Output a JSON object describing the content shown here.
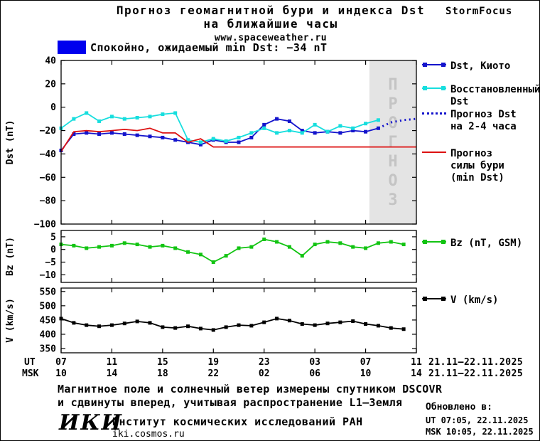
{
  "header": {
    "title_line1": "Прогноз геомагнитной бури и индекса Dst",
    "title_line2": "на ближайшие часы",
    "site": "www.spaceweather.ru",
    "brand": "StormFocus"
  },
  "banner": {
    "text": "Спокойно, ожидаемый min Dst: −34 nT",
    "swatch_color": "#0000ee"
  },
  "legend": {
    "entries": [
      {
        "label": "Dst, Киото",
        "color": "#1414cc",
        "style": "solid",
        "marker": "square"
      },
      {
        "label": "Восстановленный\nDst",
        "color": "#17dede",
        "style": "solid",
        "marker": "square"
      },
      {
        "label": "Прогноз Dst\nна 2-4 часа",
        "color": "#1414cc",
        "style": "dotted",
        "marker": "none"
      },
      {
        "label": "Прогноз\nсилы бури\n(min Dst)",
        "color": "#dd1111",
        "style": "solid",
        "marker": "none"
      },
      {
        "label": "Bz (nT, GSM)",
        "color": "#12c412",
        "style": "solid",
        "marker": "square"
      },
      {
        "label": "V (km/s)",
        "color": "#000000",
        "style": "solid",
        "marker": "square"
      }
    ]
  },
  "chart_data": [
    {
      "type": "line",
      "ylabel": "Dst (nT)",
      "ylim": [
        -100,
        40
      ],
      "yticks": [
        40,
        20,
        0,
        -20,
        -40,
        -60,
        -80,
        -100
      ],
      "xlim": [
        7,
        35
      ],
      "xticks": [
        7,
        11,
        15,
        19,
        23,
        27,
        31,
        35
      ],
      "grid": false,
      "legend_position": "right",
      "forecast_region": {
        "x_start": 31.3,
        "x_end": 35,
        "label": "ПРОГНОЗ",
        "fill": "#e4e4e4",
        "text_color": "#c4c4c4"
      },
      "series": [
        {
          "id": "dst-kyoto",
          "name": "Dst, Киото",
          "color": "#1414cc",
          "style": "solid",
          "marker": "square",
          "x": [
            7,
            8,
            9,
            10,
            11,
            12,
            13,
            14,
            15,
            16,
            17,
            18,
            19,
            20,
            21,
            22,
            23,
            24,
            25,
            26,
            27,
            28,
            29,
            30,
            31,
            32
          ],
          "y": [
            -37,
            -23,
            -22,
            -23,
            -22,
            -23,
            -24,
            -25,
            -26,
            -28,
            -30,
            -32,
            -28,
            -30,
            -30,
            -26,
            -15,
            -10,
            -12,
            -20,
            -22,
            -21,
            -22,
            -20,
            -21,
            -18
          ]
        },
        {
          "id": "restored-dst",
          "name": "Восстановленный Dst",
          "color": "#17dede",
          "style": "solid",
          "marker": "square",
          "x": [
            7,
            8,
            9,
            10,
            11,
            12,
            13,
            14,
            15,
            16,
            17,
            18,
            19,
            20,
            21,
            22,
            23,
            24,
            25,
            26,
            27,
            28,
            29,
            30,
            31,
            32
          ],
          "y": [
            -18,
            -10,
            -5,
            -12,
            -8,
            -10,
            -9,
            -8,
            -6,
            -5,
            -28,
            -30,
            -27,
            -29,
            -26,
            -22,
            -18,
            -22,
            -20,
            -22,
            -15,
            -21,
            -16,
            -18,
            -14,
            -11
          ]
        },
        {
          "id": "forecast-dst",
          "name": "Прогноз Dst на 2-4 часа",
          "color": "#1414cc",
          "style": "dotted",
          "marker": "none",
          "x": [
            32,
            33,
            34,
            35
          ],
          "y": [
            -18,
            -13,
            -11,
            -10
          ]
        },
        {
          "id": "storm-forecast",
          "name": "Прогноз силы бури (min Dst)",
          "color": "#dd1111",
          "style": "solid",
          "marker": "none",
          "x": [
            7,
            8,
            9,
            10,
            11,
            12,
            13,
            14,
            15,
            16,
            17,
            18,
            19,
            35
          ],
          "y": [
            -38,
            -21,
            -20,
            -21,
            -20,
            -19,
            -20,
            -18,
            -22,
            -22,
            -30,
            -27,
            -34,
            -34
          ]
        }
      ]
    },
    {
      "type": "line",
      "ylabel": "Bz (nT)",
      "ylim": [
        -13,
        7.5
      ],
      "yticks": [
        5,
        0,
        -5,
        -10
      ],
      "xlim": [
        7,
        35
      ],
      "xticks": [
        7,
        11,
        15,
        19,
        23,
        27,
        31,
        35
      ],
      "grid": false,
      "series": [
        {
          "id": "bz",
          "name": "Bz (nT, GSM)",
          "color": "#12c412",
          "style": "solid",
          "marker": "square",
          "x": [
            7,
            8,
            9,
            10,
            11,
            12,
            13,
            14,
            15,
            16,
            17,
            18,
            19,
            20,
            21,
            22,
            23,
            24,
            25,
            26,
            27,
            28,
            29,
            30,
            31,
            32,
            33,
            34
          ],
          "y": [
            2,
            1.5,
            0.5,
            1,
            1.5,
            2.5,
            2,
            1,
            1.5,
            0.5,
            -1,
            -2,
            -5,
            -2.5,
            0.5,
            1,
            4,
            3,
            1,
            -2.5,
            2,
            3,
            2.5,
            1,
            0.5,
            2.5,
            3,
            2
          ]
        }
      ]
    },
    {
      "type": "line",
      "ylabel": "V (km/s)",
      "ylim": [
        335,
        562
      ],
      "yticks": [
        550,
        500,
        450,
        400,
        350
      ],
      "xlim": [
        7,
        35
      ],
      "xticks": [
        7,
        11,
        15,
        19,
        23,
        27,
        31,
        35
      ],
      "grid": false,
      "series": [
        {
          "id": "v",
          "name": "V (km/s)",
          "color": "#000000",
          "style": "solid",
          "marker": "square",
          "x": [
            7,
            8,
            9,
            10,
            11,
            12,
            13,
            14,
            15,
            16,
            17,
            18,
            19,
            20,
            21,
            22,
            23,
            24,
            25,
            26,
            27,
            28,
            29,
            30,
            31,
            32,
            33,
            34
          ],
          "y": [
            455,
            440,
            432,
            428,
            432,
            438,
            445,
            440,
            425,
            422,
            428,
            420,
            415,
            425,
            432,
            430,
            442,
            455,
            448,
            436,
            432,
            438,
            442,
            446,
            436,
            430,
            422,
            418
          ]
        }
      ]
    }
  ],
  "xaxis": {
    "ut_label": "UT",
    "msk_label": "MSK",
    "ut_ticks": [
      "07",
      "11",
      "15",
      "19",
      "23",
      "03",
      "07",
      "11"
    ],
    "msk_ticks": [
      "10",
      "14",
      "18",
      "22",
      "02",
      "06",
      "10",
      "14"
    ],
    "ut_date": "21.11—22.11.2025",
    "msk_date": "21.11—22.11.2025"
  },
  "footer": {
    "note_line1": "Магнитное поле и солнечный ветер измерены спутником DSCOVR",
    "note_line2": "и сдвинуты вперед, учитывая распространение L1—Земля",
    "updated_label": "Обновлено в:",
    "updated_ut": "UT  07:05, 22.11.2025",
    "updated_msk": "MSK 10:05, 22.11.2025",
    "logo": "ИКИ",
    "institute": "Институт космических исследований РАН",
    "institute_site": "iki.cosmos.ru"
  }
}
